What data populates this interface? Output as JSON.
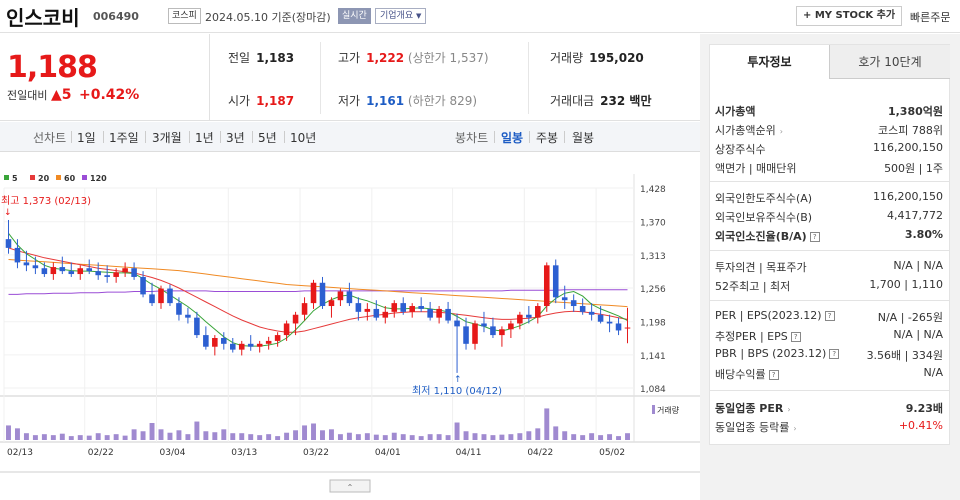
{
  "header": {
    "name": "인스코비",
    "code": "006490",
    "market": "코스피",
    "date": "2024.05.10 기준(장마감)",
    "live": "실시간",
    "overview": "기업개요",
    "overview_icon": "chevron-down-icon",
    "mystock": "+ MY STOCK 추가",
    "quick_order": "빠른주문"
  },
  "price": {
    "current": "1,188",
    "change_label": "전일대비",
    "change_icon": "up-triangle-icon",
    "change_value": "5",
    "change_pct": "+0.42%"
  },
  "summary": {
    "prev_label": "전일",
    "prev": "1,183",
    "high_label": "고가",
    "high": "1,222",
    "high_limit": "(상한가 1,537)",
    "volume_label": "거래량",
    "volume": "195,020",
    "open_label": "시가",
    "open": "1,187",
    "low_label": "저가",
    "low": "1,161",
    "low_limit": "(하한가 829)",
    "amount_label": "거래대금",
    "amount": "232 백만"
  },
  "chart_tabs": {
    "line_label": "선차트",
    "line_periods": [
      "1일",
      "1주일",
      "3개월",
      "1년",
      "3년",
      "5년",
      "10년"
    ],
    "candle_label": "봉차트",
    "candle_periods": [
      "일봉",
      "주봉",
      "월봉"
    ],
    "active_candle": "일봉"
  },
  "chart_data": {
    "type": "candlestick",
    "legend": [
      {
        "name": "5",
        "color": "#3aa53a"
      },
      {
        "name": "20",
        "color": "#e63a3a"
      },
      {
        "name": "60",
        "color": "#f08a24"
      },
      {
        "name": "120",
        "color": "#9a4dd6"
      }
    ],
    "y_ticks": [
      "1,428",
      "1,370",
      "1,313",
      "1,256",
      "1,198",
      "1,141",
      "1,084"
    ],
    "x_ticks": [
      "02/13",
      "02/22",
      "03/04",
      "03/13",
      "03/22",
      "04/01",
      "04/11",
      "04/22",
      "05/02"
    ],
    "ylim": [
      1084,
      1428
    ],
    "high_note": "최고 1,373 (02/13)",
    "low_note": "최저 1,110 (04/12)",
    "volume_label": "거래량",
    "colors": {
      "up": "#e61919",
      "down": "#2c5fd1",
      "volume": "#a08ad0"
    },
    "candles": [
      [
        1340,
        1373,
        1315,
        1325
      ],
      [
        1325,
        1340,
        1290,
        1300
      ],
      [
        1300,
        1320,
        1285,
        1295
      ],
      [
        1295,
        1310,
        1280,
        1290
      ],
      [
        1290,
        1300,
        1275,
        1280
      ],
      [
        1280,
        1300,
        1270,
        1292
      ],
      [
        1292,
        1310,
        1280,
        1285
      ],
      [
        1285,
        1300,
        1275,
        1280
      ],
      [
        1280,
        1295,
        1270,
        1290
      ],
      [
        1290,
        1305,
        1280,
        1285
      ],
      [
        1285,
        1300,
        1270,
        1278
      ],
      [
        1278,
        1295,
        1265,
        1275
      ],
      [
        1275,
        1290,
        1265,
        1283
      ],
      [
        1283,
        1300,
        1275,
        1290
      ],
      [
        1290,
        1300,
        1270,
        1275
      ],
      [
        1275,
        1285,
        1240,
        1245
      ],
      [
        1245,
        1265,
        1225,
        1230
      ],
      [
        1230,
        1260,
        1220,
        1255
      ],
      [
        1255,
        1262,
        1225,
        1230
      ],
      [
        1230,
        1240,
        1200,
        1210
      ],
      [
        1210,
        1222,
        1195,
        1205
      ],
      [
        1205,
        1215,
        1170,
        1175
      ],
      [
        1175,
        1190,
        1150,
        1155
      ],
      [
        1155,
        1175,
        1140,
        1170
      ],
      [
        1170,
        1180,
        1150,
        1160
      ],
      [
        1160,
        1170,
        1145,
        1150
      ],
      [
        1150,
        1165,
        1140,
        1160
      ],
      [
        1160,
        1175,
        1148,
        1155
      ],
      [
        1155,
        1165,
        1145,
        1160
      ],
      [
        1160,
        1172,
        1150,
        1165
      ],
      [
        1165,
        1180,
        1155,
        1175
      ],
      [
        1175,
        1200,
        1165,
        1195
      ],
      [
        1195,
        1215,
        1175,
        1210
      ],
      [
        1210,
        1240,
        1200,
        1230
      ],
      [
        1230,
        1270,
        1220,
        1265
      ],
      [
        1265,
        1275,
        1220,
        1225
      ],
      [
        1225,
        1240,
        1205,
        1235
      ],
      [
        1235,
        1255,
        1225,
        1250
      ],
      [
        1250,
        1265,
        1225,
        1230
      ],
      [
        1230,
        1240,
        1200,
        1215
      ],
      [
        1215,
        1230,
        1200,
        1220
      ],
      [
        1220,
        1235,
        1200,
        1205
      ],
      [
        1205,
        1225,
        1195,
        1215
      ],
      [
        1215,
        1235,
        1205,
        1230
      ],
      [
        1230,
        1240,
        1210,
        1215
      ],
      [
        1215,
        1230,
        1205,
        1225
      ],
      [
        1225,
        1240,
        1215,
        1220
      ],
      [
        1220,
        1232,
        1200,
        1205
      ],
      [
        1205,
        1225,
        1195,
        1220
      ],
      [
        1220,
        1232,
        1195,
        1200
      ],
      [
        1200,
        1212,
        1110,
        1190
      ],
      [
        1190,
        1205,
        1150,
        1160
      ],
      [
        1160,
        1200,
        1150,
        1195
      ],
      [
        1195,
        1215,
        1180,
        1190
      ],
      [
        1190,
        1205,
        1170,
        1175
      ],
      [
        1175,
        1190,
        1155,
        1185
      ],
      [
        1185,
        1200,
        1170,
        1195
      ],
      [
        1195,
        1215,
        1185,
        1210
      ],
      [
        1210,
        1225,
        1195,
        1205
      ],
      [
        1205,
        1230,
        1195,
        1225
      ],
      [
        1225,
        1300,
        1215,
        1295
      ],
      [
        1295,
        1305,
        1230,
        1240
      ],
      [
        1240,
        1260,
        1220,
        1235
      ],
      [
        1235,
        1245,
        1215,
        1225
      ],
      [
        1225,
        1238,
        1210,
        1215
      ],
      [
        1215,
        1230,
        1200,
        1210
      ],
      [
        1210,
        1225,
        1195,
        1198
      ],
      [
        1198,
        1210,
        1180,
        1195
      ],
      [
        1195,
        1205,
        1175,
        1183
      ],
      [
        1187,
        1222,
        1161,
        1188
      ]
    ],
    "volumes": [
      30,
      24,
      14,
      10,
      12,
      10,
      13,
      8,
      10,
      9,
      14,
      10,
      12,
      9,
      22,
      18,
      35,
      22,
      15,
      20,
      12,
      38,
      18,
      16,
      22,
      14,
      14,
      12,
      10,
      12,
      8,
      15,
      20,
      30,
      34,
      20,
      22,
      12,
      15,
      12,
      14,
      11,
      10,
      15,
      12,
      10,
      8,
      12,
      12,
      10,
      36,
      18,
      14,
      12,
      10,
      11,
      12,
      14,
      18,
      24,
      65,
      28,
      18,
      12,
      10,
      14,
      10,
      12,
      8,
      14
    ],
    "ma5": [
      1350,
      1330,
      1315,
      1305,
      1295,
      1290,
      1288,
      1286,
      1285,
      1285,
      1284,
      1283,
      1282,
      1282,
      1281,
      1272,
      1262,
      1254,
      1244,
      1234,
      1224,
      1212,
      1198,
      1185,
      1172,
      1162,
      1157,
      1156,
      1156,
      1158,
      1161,
      1170,
      1184,
      1200,
      1217,
      1228,
      1236,
      1242,
      1244,
      1238,
      1234,
      1228,
      1222,
      1220,
      1220,
      1221,
      1222,
      1220,
      1218,
      1215,
      1207,
      1198,
      1194,
      1190,
      1184,
      1182,
      1186,
      1191,
      1198,
      1207,
      1225,
      1238,
      1247,
      1250,
      1242,
      1228,
      1220,
      1214,
      1208,
      1200
    ],
    "ma20": [
      1325,
      1320,
      1316,
      1312,
      1308,
      1305,
      1302,
      1299,
      1296,
      1293,
      1290,
      1288,
      1286,
      1284,
      1282,
      1278,
      1274,
      1269,
      1263,
      1256,
      1248,
      1240,
      1232,
      1224,
      1216,
      1208,
      1201,
      1195,
      1189,
      1185,
      1182,
      1180,
      1180,
      1182,
      1186,
      1190,
      1194,
      1198,
      1202,
      1205,
      1207,
      1209,
      1211,
      1213,
      1214,
      1215,
      1215,
      1215,
      1214,
      1213,
      1211,
      1209,
      1207,
      1205,
      1203,
      1202,
      1202,
      1203,
      1204,
      1206,
      1210,
      1213,
      1215,
      1216,
      1215,
      1213,
      1211,
      1208,
      1205,
      1202
    ],
    "ma60": [
      1305,
      1304,
      1303,
      1302,
      1301,
      1300,
      1299,
      1298,
      1297,
      1296,
      1295,
      1294,
      1293,
      1292,
      1291,
      1290,
      1289,
      1288,
      1287,
      1286,
      1284,
      1282,
      1280,
      1278,
      1276,
      1274,
      1272,
      1270,
      1268,
      1266,
      1264,
      1262,
      1261,
      1260,
      1259,
      1258,
      1257,
      1256,
      1255,
      1254,
      1253,
      1252,
      1251,
      1250,
      1249,
      1248,
      1247,
      1246,
      1245,
      1244,
      1243,
      1242,
      1241,
      1240,
      1239,
      1238,
      1237,
      1236,
      1235,
      1234,
      1233,
      1232,
      1231,
      1230,
      1229,
      1228,
      1227,
      1226,
      1225,
      1224
    ],
    "ma120": [
      1245,
      1245,
      1246,
      1246,
      1246,
      1247,
      1247,
      1247,
      1248,
      1248,
      1248,
      1249,
      1249,
      1249,
      1250,
      1250,
      1250,
      1251,
      1251,
      1251,
      1251,
      1251,
      1251,
      1250,
      1250,
      1250,
      1250,
      1250,
      1250,
      1250,
      1250,
      1250,
      1250,
      1251,
      1251,
      1251,
      1251,
      1251,
      1251,
      1251,
      1251,
      1251,
      1251,
      1251,
      1251,
      1251,
      1251,
      1251,
      1251,
      1251,
      1251,
      1251,
      1251,
      1251,
      1251,
      1251,
      1252,
      1252,
      1252,
      1252,
      1252,
      1252,
      1253,
      1253,
      1253,
      1253,
      1253,
      1253,
      1253,
      1253
    ]
  },
  "sidebar": {
    "tab_invest": "투자정보",
    "tab_hoga": "호가 10단계",
    "rows": [
      {
        "k": "시가총액",
        "v": "1,380억원",
        "bold": true
      },
      {
        "k": "시가총액순위",
        "v": "코스피 788위",
        "info": true
      },
      {
        "k": "상장주식수",
        "v": "116,200,150"
      },
      {
        "k": "액면가 | 매매단위",
        "v": "500원 | 1주"
      },
      {
        "k": "외국인한도주식수(A)",
        "v": "116,200,150"
      },
      {
        "k": "외국인보유주식수(B)",
        "v": "4,417,772"
      },
      {
        "k": "외국인소진율(B/A)",
        "v": "3.80%",
        "bold": true,
        "q": true
      },
      {
        "k": "투자의견 | 목표주가",
        "v": "N/A | N/A"
      },
      {
        "k": "52주최고 | 최저",
        "v": "1,700 | 1,110"
      },
      {
        "k": "PER | EPS(2023.12)",
        "v": "N/A | -265원",
        "q": true
      },
      {
        "k": "추정PER | EPS",
        "v": "N/A | N/A",
        "q": true
      },
      {
        "k": "PBR | BPS (2023.12)",
        "v": "3.56배 | 334원",
        "q": true
      },
      {
        "k": "배당수익률",
        "v": "N/A",
        "q": true
      },
      {
        "k": "동일업종 PER",
        "v": "9.23배",
        "bold": true,
        "info": true
      },
      {
        "k": "동일업종 등락률",
        "v": "+0.41%",
        "red": true,
        "info": true
      }
    ]
  }
}
